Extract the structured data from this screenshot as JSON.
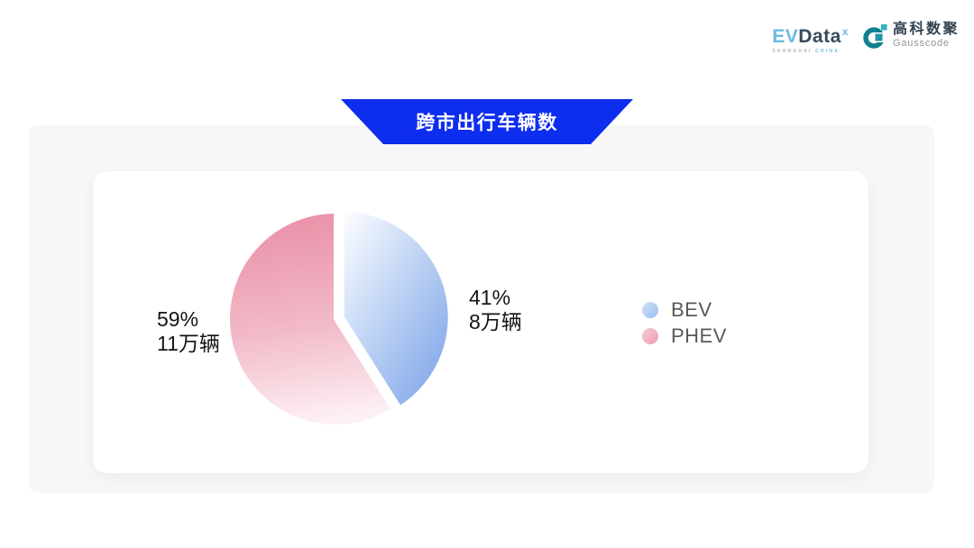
{
  "header": {
    "evdata_logo": {
      "ev": "EV",
      "data": "Data",
      "sup": "x",
      "sub_left": "SHANGHAI",
      "sub_right": "CHINA"
    },
    "gausscode_logo": {
      "cn": "高科数聚",
      "en": "Gausscode"
    }
  },
  "banner": {
    "title": "跨市出行车辆数"
  },
  "chart_data": {
    "type": "pie",
    "title": "跨市出行车辆数",
    "unit": "万辆",
    "series": [
      {
        "name": "BEV",
        "value": 41,
        "percent_label": "41%",
        "count_label": "8万辆",
        "color": "#7da3e8"
      },
      {
        "name": "PHEV",
        "value": 59,
        "percent_label": "59%",
        "count_label": "11万辆",
        "color": "#ec93a8"
      }
    ],
    "start_angle_deg": 90,
    "direction": "clockwise",
    "exploded_slice": "BEV",
    "legend_position": "right-middle",
    "accent_blue": "#0d2def",
    "panel_gray": "#f7f7f8"
  }
}
